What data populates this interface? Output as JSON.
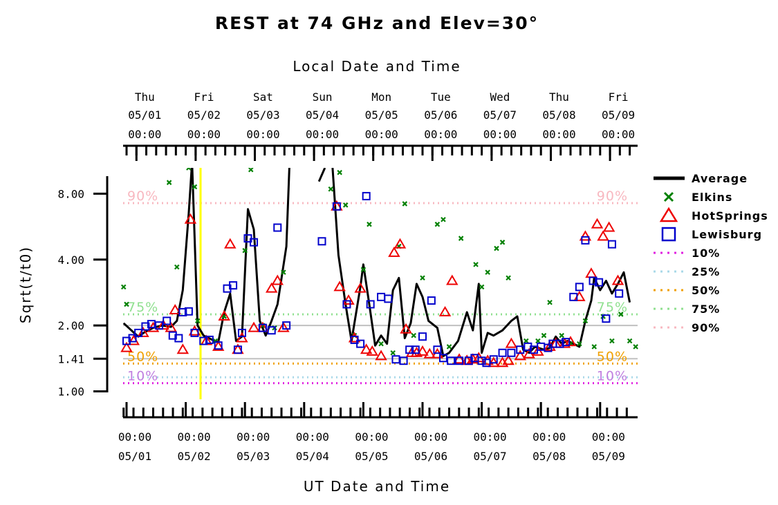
{
  "chart_data": {
    "type": "scatter",
    "title": "REST at 74 GHz and Elev=30°",
    "top_axis_label": "Local Date and Time",
    "xlabel": "UT Date and Time",
    "ylabel": "Sqrt(t/t0)",
    "y_scale": "log",
    "ylim": [
      0.92,
      10.5
    ],
    "xlim_days": [
      -0.1,
      8.55
    ],
    "y_ticks": [
      {
        "value": 1.0,
        "label": "1.00"
      },
      {
        "value": 1.41,
        "label": "1.41"
      },
      {
        "value": 2.0,
        "label": "2.00"
      },
      {
        "value": 4.0,
        "label": "4.00"
      },
      {
        "value": 8.0,
        "label": "8.00"
      }
    ],
    "bottom_ticks": [
      {
        "day": 0,
        "time": "00:00",
        "date": "05/01"
      },
      {
        "day": 1,
        "time": "00:00",
        "date": "05/02"
      },
      {
        "day": 2,
        "time": "00:00",
        "date": "05/03"
      },
      {
        "day": 3,
        "time": "00:00",
        "date": "05/04"
      },
      {
        "day": 4,
        "time": "00:00",
        "date": "05/05"
      },
      {
        "day": 5,
        "time": "00:00",
        "date": "05/06"
      },
      {
        "day": 6,
        "time": "00:00",
        "date": "05/07"
      },
      {
        "day": 7,
        "time": "00:00",
        "date": "05/08"
      },
      {
        "day": 8,
        "time": "00:00",
        "date": "05/09"
      }
    ],
    "top_ticks": [
      {
        "day": 0.167,
        "dow": "Thu",
        "date": "05/01",
        "time": "00:00"
      },
      {
        "day": 1.167,
        "dow": "Fri",
        "date": "05/02",
        "time": "00:00"
      },
      {
        "day": 2.167,
        "dow": "Sat",
        "date": "05/03",
        "time": "00:00"
      },
      {
        "day": 3.167,
        "dow": "Sun",
        "date": "05/04",
        "time": "00:00"
      },
      {
        "day": 4.167,
        "dow": "Mon",
        "date": "05/05",
        "time": "00:00"
      },
      {
        "day": 5.167,
        "dow": "Tue",
        "date": "05/06",
        "time": "00:00"
      },
      {
        "day": 6.167,
        "dow": "Wed",
        "date": "05/07",
        "time": "00:00"
      },
      {
        "day": 7.167,
        "dow": "Thu",
        "date": "05/08",
        "time": "00:00"
      },
      {
        "day": 8.167,
        "dow": "Fri",
        "date": "05/09",
        "time": "00:00"
      }
    ],
    "reference_lines": [
      {
        "name": "10%",
        "value": 1.09,
        "color": "#e020e0",
        "label_color": "#c080e0"
      },
      {
        "name": "25%",
        "value": 1.16,
        "color": "#a8d8e8",
        "label_color": "#a8d8e8"
      },
      {
        "name": "50%",
        "value": 1.34,
        "color": "#f0a000",
        "label_color": "#f0a000"
      },
      {
        "name": "75%",
        "value": 2.25,
        "color": "#90e090",
        "label_color": "#90e090"
      },
      {
        "name": "90%",
        "value": 7.25,
        "color": "#f8b8c0",
        "label_color": "#f8b8c0"
      }
    ],
    "gray_lines": [
      1.41,
      2.0
    ],
    "marker_line": {
      "day": 1.25,
      "color": "#ffff00"
    },
    "series": [
      {
        "name": "Average",
        "style": "line",
        "color": "#000000",
        "segments": [
          [
            [
              -0.05,
              2.05
            ],
            [
              0.1,
              1.88
            ],
            [
              0.2,
              1.78
            ],
            [
              0.3,
              1.86
            ],
            [
              0.45,
              1.95
            ],
            [
              0.6,
              2.0
            ],
            [
              0.75,
              1.97
            ],
            [
              0.85,
              2.1
            ],
            [
              0.95,
              2.9
            ],
            [
              1.05,
              6.5
            ],
            [
              1.1,
              10.5
            ]
          ],
          [
            [
              1.11,
              10.5
            ],
            [
              1.2,
              2.0
            ],
            [
              1.3,
              1.8
            ],
            [
              1.45,
              1.72
            ],
            [
              1.55,
              1.68
            ],
            [
              1.65,
              2.3
            ],
            [
              1.75,
              2.8
            ],
            [
              1.85,
              1.7
            ],
            [
              1.95,
              1.78
            ],
            [
              2.05,
              6.8
            ],
            [
              2.15,
              5.5
            ],
            [
              2.25,
              2.1
            ],
            [
              2.35,
              1.8
            ],
            [
              2.45,
              2.1
            ],
            [
              2.55,
              2.5
            ],
            [
              2.7,
              4.6
            ],
            [
              2.75,
              10.5
            ]
          ],
          [
            [
              3.25,
              9.1
            ],
            [
              3.35,
              10.5
            ]
          ],
          [
            [
              3.48,
              10.5
            ],
            [
              3.58,
              4.2
            ],
            [
              3.7,
              2.5
            ],
            [
              3.8,
              1.7
            ],
            [
              3.95,
              3.0
            ],
            [
              4.0,
              3.8
            ],
            [
              4.1,
              2.5
            ],
            [
              4.2,
              1.62
            ],
            [
              4.3,
              1.8
            ],
            [
              4.4,
              1.65
            ],
            [
              4.5,
              2.9
            ],
            [
              4.6,
              3.3
            ],
            [
              4.7,
              1.75
            ],
            [
              4.8,
              2.05
            ],
            [
              4.9,
              3.1
            ],
            [
              5.0,
              2.7
            ],
            [
              5.1,
              2.1
            ],
            [
              5.25,
              1.95
            ],
            [
              5.35,
              1.45
            ],
            [
              5.45,
              1.5
            ],
            [
              5.6,
              1.7
            ],
            [
              5.75,
              2.3
            ],
            [
              5.85,
              1.9
            ],
            [
              5.95,
              3.1
            ],
            [
              6.0,
              1.5
            ],
            [
              6.1,
              1.85
            ],
            [
              6.2,
              1.8
            ],
            [
              6.35,
              1.9
            ],
            [
              6.5,
              2.1
            ],
            [
              6.6,
              2.2
            ],
            [
              6.7,
              1.55
            ],
            [
              6.8,
              1.5
            ],
            [
              6.9,
              1.6
            ],
            [
              7.05,
              1.55
            ],
            [
              7.15,
              1.58
            ],
            [
              7.25,
              1.78
            ],
            [
              7.35,
              1.65
            ],
            [
              7.45,
              1.7
            ],
            [
              7.55,
              1.65
            ],
            [
              7.65,
              1.6
            ],
            [
              7.75,
              2.1
            ],
            [
              7.85,
              2.6
            ],
            [
              7.9,
              3.3
            ],
            [
              8.0,
              2.9
            ],
            [
              8.1,
              3.2
            ],
            [
              8.2,
              2.8
            ],
            [
              8.3,
              3.1
            ],
            [
              8.4,
              3.5
            ],
            [
              8.5,
              2.55
            ]
          ]
        ]
      },
      {
        "name": "Elkins",
        "style": "x",
        "color": "#008000",
        "points": [
          [
            -0.05,
            3.0
          ],
          [
            0.0,
            2.5
          ],
          [
            0.85,
            3.7
          ],
          [
            1.05,
            10.5
          ],
          [
            0.72,
            9.0
          ],
          [
            1.15,
            8.6
          ],
          [
            1.2,
            2.1
          ],
          [
            1.5,
            1.7
          ],
          [
            1.65,
            2.2
          ],
          [
            2.0,
            4.4
          ],
          [
            2.1,
            10.3
          ],
          [
            2.3,
            2.0
          ],
          [
            2.5,
            1.95
          ],
          [
            2.65,
            3.5
          ],
          [
            3.45,
            8.4
          ],
          [
            3.6,
            10.0
          ],
          [
            3.7,
            7.1
          ],
          [
            3.85,
            1.8
          ],
          [
            4.0,
            3.6
          ],
          [
            4.1,
            5.8
          ],
          [
            4.3,
            1.65
          ],
          [
            4.5,
            1.5
          ],
          [
            4.6,
            4.6
          ],
          [
            4.7,
            7.2
          ],
          [
            4.85,
            1.8
          ],
          [
            5.0,
            3.3
          ],
          [
            5.25,
            5.8
          ],
          [
            5.35,
            6.1
          ],
          [
            5.45,
            1.6
          ],
          [
            5.65,
            5.0
          ],
          [
            5.9,
            3.8
          ],
          [
            6.0,
            3.0
          ],
          [
            6.1,
            3.5
          ],
          [
            6.25,
            4.5
          ],
          [
            6.35,
            4.8
          ],
          [
            6.45,
            3.3
          ],
          [
            6.75,
            1.7
          ],
          [
            6.95,
            1.7
          ],
          [
            7.05,
            1.8
          ],
          [
            7.15,
            2.55
          ],
          [
            7.35,
            1.8
          ],
          [
            7.5,
            1.65
          ],
          [
            7.65,
            1.65
          ],
          [
            7.75,
            2.1
          ],
          [
            7.9,
            1.6
          ],
          [
            8.05,
            2.2
          ],
          [
            8.2,
            1.7
          ],
          [
            8.35,
            2.25
          ],
          [
            8.5,
            1.7
          ],
          [
            8.6,
            1.6
          ]
        ]
      },
      {
        "name": "HotSprings",
        "style": "triangle",
        "color": "#ee0000",
        "points": [
          [
            0.0,
            1.58
          ],
          [
            0.12,
            1.7
          ],
          [
            0.28,
            1.85
          ],
          [
            0.45,
            1.95
          ],
          [
            0.62,
            2.0
          ],
          [
            0.75,
            1.95
          ],
          [
            0.82,
            2.35
          ],
          [
            0.95,
            1.55
          ],
          [
            1.08,
            6.1
          ],
          [
            1.15,
            1.88
          ],
          [
            1.35,
            1.7
          ],
          [
            1.55,
            1.6
          ],
          [
            1.65,
            2.2
          ],
          [
            1.75,
            4.7
          ],
          [
            1.88,
            1.55
          ],
          [
            1.95,
            1.75
          ],
          [
            2.15,
            1.95
          ],
          [
            2.3,
            1.95
          ],
          [
            2.45,
            2.95
          ],
          [
            2.55,
            3.2
          ],
          [
            2.65,
            1.95
          ],
          [
            3.55,
            7.0
          ],
          [
            3.6,
            3.0
          ],
          [
            3.75,
            2.6
          ],
          [
            3.85,
            1.75
          ],
          [
            3.95,
            2.95
          ],
          [
            4.05,
            1.55
          ],
          [
            4.15,
            1.52
          ],
          [
            4.3,
            1.45
          ],
          [
            4.52,
            4.3
          ],
          [
            4.62,
            4.7
          ],
          [
            4.72,
            1.92
          ],
          [
            4.82,
            1.5
          ],
          [
            4.9,
            1.5
          ],
          [
            5.0,
            1.52
          ],
          [
            5.12,
            1.48
          ],
          [
            5.25,
            1.48
          ],
          [
            5.38,
            2.3
          ],
          [
            5.5,
            3.2
          ],
          [
            5.62,
            1.4
          ],
          [
            5.75,
            1.38
          ],
          [
            5.85,
            1.4
          ],
          [
            5.95,
            1.42
          ],
          [
            6.1,
            1.38
          ],
          [
            6.2,
            1.35
          ],
          [
            6.35,
            1.35
          ],
          [
            6.45,
            1.38
          ],
          [
            6.5,
            1.65
          ],
          [
            6.65,
            1.45
          ],
          [
            6.8,
            1.48
          ],
          [
            6.95,
            1.52
          ],
          [
            7.15,
            1.6
          ],
          [
            7.25,
            1.65
          ],
          [
            7.4,
            1.65
          ],
          [
            7.5,
            1.68
          ],
          [
            7.65,
            2.7
          ],
          [
            7.75,
            5.1
          ],
          [
            7.85,
            3.45
          ],
          [
            7.95,
            5.8
          ],
          [
            8.05,
            5.1
          ],
          [
            8.15,
            5.6
          ],
          [
            8.3,
            3.2
          ]
        ]
      },
      {
        "name": "Lewisburg",
        "style": "square",
        "color": "#0000cc",
        "points": [
          [
            0.0,
            1.7
          ],
          [
            0.1,
            1.75
          ],
          [
            0.2,
            1.85
          ],
          [
            0.32,
            1.98
          ],
          [
            0.42,
            2.03
          ],
          [
            0.55,
            2.0
          ],
          [
            0.68,
            2.1
          ],
          [
            0.78,
            1.8
          ],
          [
            0.88,
            1.75
          ],
          [
            0.95,
            2.3
          ],
          [
            1.05,
            2.32
          ],
          [
            1.15,
            1.85
          ],
          [
            1.3,
            1.7
          ],
          [
            1.4,
            1.72
          ],
          [
            1.55,
            1.62
          ],
          [
            1.7,
            2.95
          ],
          [
            1.8,
            3.05
          ],
          [
            1.88,
            1.55
          ],
          [
            1.95,
            1.85
          ],
          [
            2.05,
            5.0
          ],
          [
            2.15,
            4.8
          ],
          [
            2.3,
            1.95
          ],
          [
            2.45,
            1.9
          ],
          [
            2.55,
            5.6
          ],
          [
            2.7,
            2.0
          ],
          [
            3.3,
            4.85
          ],
          [
            3.55,
            7.0
          ],
          [
            3.72,
            2.5
          ],
          [
            3.85,
            1.72
          ],
          [
            3.95,
            1.65
          ],
          [
            4.05,
            7.8
          ],
          [
            4.12,
            2.5
          ],
          [
            4.3,
            2.7
          ],
          [
            4.42,
            2.65
          ],
          [
            4.55,
            1.4
          ],
          [
            4.68,
            1.38
          ],
          [
            4.78,
            1.55
          ],
          [
            4.88,
            1.55
          ],
          [
            5.0,
            1.78
          ],
          [
            5.15,
            2.6
          ],
          [
            5.25,
            1.55
          ],
          [
            5.35,
            1.42
          ],
          [
            5.48,
            1.38
          ],
          [
            5.62,
            1.38
          ],
          [
            5.78,
            1.38
          ],
          [
            5.88,
            1.42
          ],
          [
            6.0,
            1.38
          ],
          [
            6.08,
            1.35
          ],
          [
            6.2,
            1.4
          ],
          [
            6.35,
            1.5
          ],
          [
            6.5,
            1.5
          ],
          [
            6.65,
            1.55
          ],
          [
            6.78,
            1.6
          ],
          [
            6.88,
            1.55
          ],
          [
            7.0,
            1.6
          ],
          [
            7.12,
            1.58
          ],
          [
            7.2,
            1.65
          ],
          [
            7.32,
            1.65
          ],
          [
            7.42,
            1.68
          ],
          [
            7.55,
            2.7
          ],
          [
            7.65,
            3.0
          ],
          [
            7.75,
            4.9
          ],
          [
            7.88,
            3.2
          ],
          [
            7.98,
            3.15
          ],
          [
            8.1,
            2.15
          ],
          [
            8.2,
            4.7
          ],
          [
            8.32,
            2.8
          ]
        ]
      }
    ],
    "legend": {
      "placement": "right-top",
      "entries": [
        "Average",
        "Elkins",
        "HotSprings",
        "Lewisburg",
        "10%",
        "25%",
        "50%",
        "75%",
        "90%"
      ]
    }
  }
}
